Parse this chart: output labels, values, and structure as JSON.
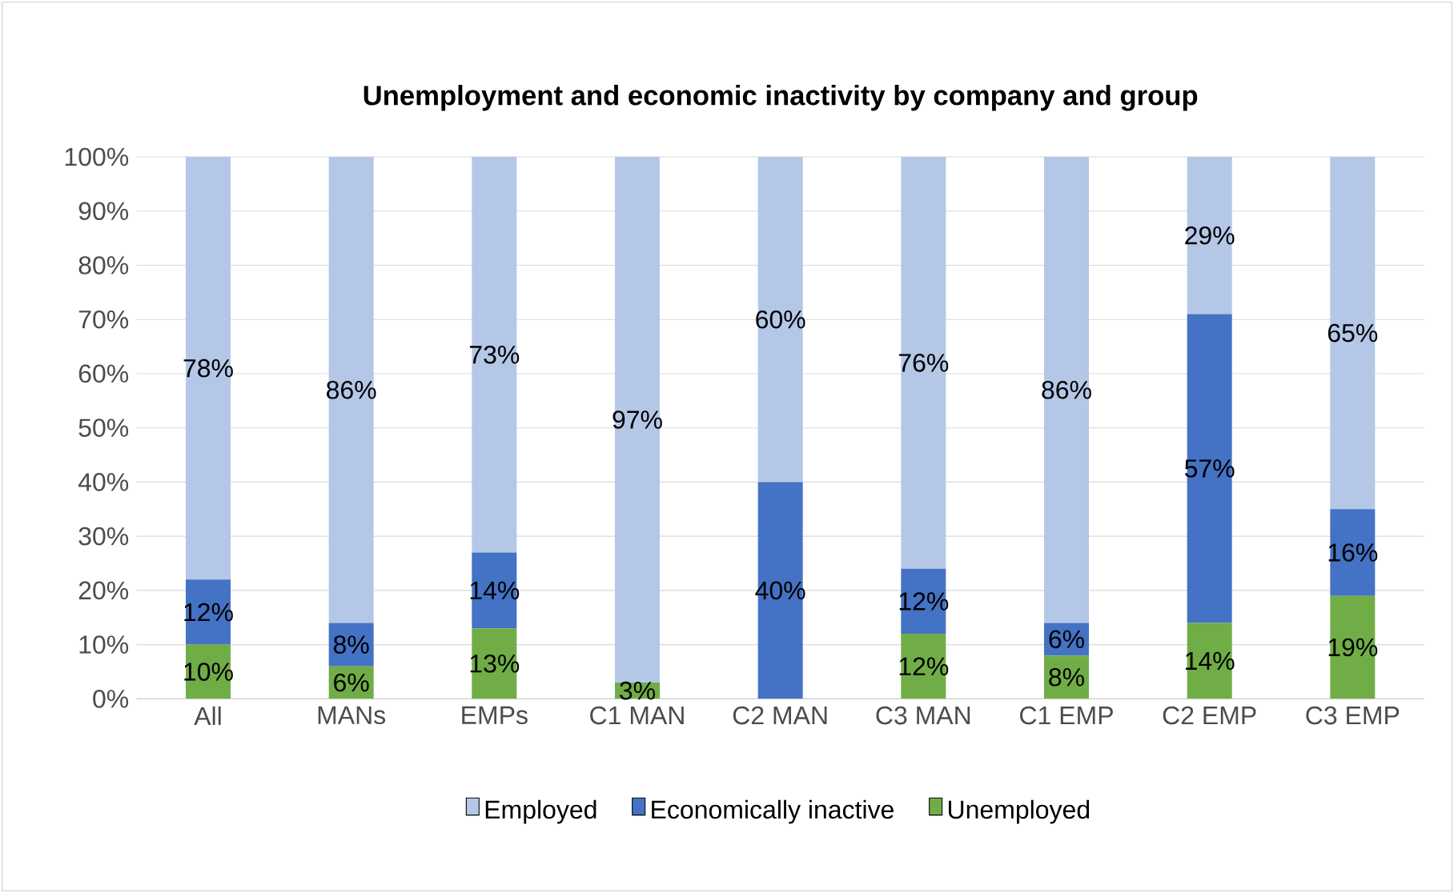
{
  "chart_data": {
    "type": "bar",
    "stacked": true,
    "title": "Unemployment and economic inactivity by company and group",
    "categories": [
      "All",
      "MANs",
      "EMPs",
      "C1 MAN",
      "C2 MAN",
      "C3 MAN",
      "C1 EMP",
      "C2 EMP",
      "C3 EMP"
    ],
    "series": [
      {
        "name": "Unemployed",
        "color": "#70ad47",
        "values": [
          10,
          6,
          13,
          3,
          0,
          12,
          8,
          14,
          19
        ],
        "value_labels": [
          "10%",
          "6%",
          "13%",
          "3%",
          null,
          "12%",
          "8%",
          "14%",
          "19%"
        ]
      },
      {
        "name": "Economically inactive",
        "color": "#4472c4",
        "values": [
          12,
          8,
          14,
          0,
          40,
          12,
          6,
          57,
          16
        ],
        "value_labels": [
          "12%",
          "8%",
          "14%",
          null,
          "40%",
          "12%",
          "6%",
          "57%",
          "16%"
        ]
      },
      {
        "name": "Employed",
        "color": "#b4c7e7",
        "values": [
          78,
          86,
          73,
          97,
          60,
          76,
          86,
          29,
          65
        ],
        "value_labels": [
          "78%",
          "86%",
          "73%",
          "97%",
          "60%",
          "76%",
          "86%",
          "29%",
          "65%"
        ]
      }
    ],
    "ylim": [
      0,
      100
    ],
    "yticks": [
      {
        "value": 0,
        "label": "0%"
      },
      {
        "value": 10,
        "label": "10%"
      },
      {
        "value": 20,
        "label": "20%"
      },
      {
        "value": 30,
        "label": "30%"
      },
      {
        "value": 40,
        "label": "40%"
      },
      {
        "value": 50,
        "label": "50%"
      },
      {
        "value": 60,
        "label": "60%"
      },
      {
        "value": 70,
        "label": "70%"
      },
      {
        "value": 80,
        "label": "80%"
      },
      {
        "value": 90,
        "label": "90%"
      },
      {
        "value": 100,
        "label": "100%"
      }
    ],
    "grid": "y",
    "legend": "bottom"
  }
}
